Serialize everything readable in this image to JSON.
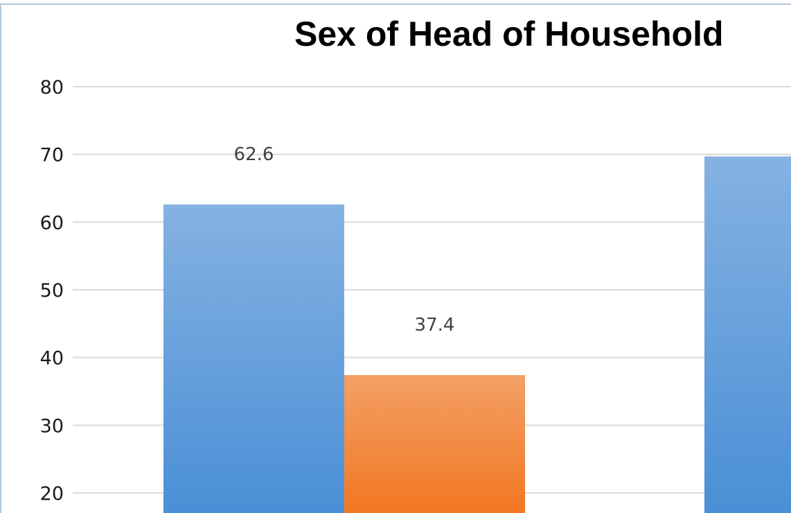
{
  "chart_data": {
    "type": "bar",
    "title": "Sex of Head of Household",
    "xlabel": "",
    "ylabel": "",
    "ylim": [
      14,
      84
    ],
    "yticks": [
      20,
      30,
      40,
      50,
      60,
      70,
      80
    ],
    "grid": true,
    "legend": "none visible",
    "series": [
      {
        "color": "#5b9bd5",
        "values": [
          62.6,
          69.7
        ],
        "labels": [
          "62.6",
          ""
        ]
      },
      {
        "color": "#ed7d31",
        "values": [
          37.4
        ],
        "labels": [
          "37.4"
        ]
      }
    ]
  },
  "colors": {
    "grid": "#d9d9d9",
    "frame": "#b4c8dc",
    "series1_top": "#85b2e2",
    "series1_bottom": "#4a8fd6",
    "series2_top": "#f3a065",
    "series2_bottom": "#f27722"
  }
}
